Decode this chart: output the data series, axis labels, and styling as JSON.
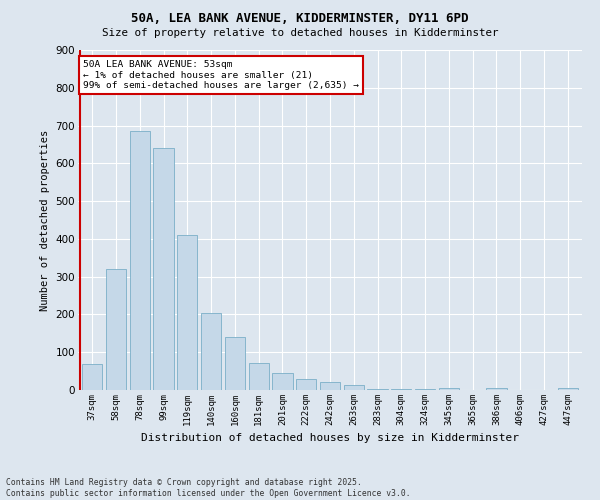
{
  "title1": "50A, LEA BANK AVENUE, KIDDERMINSTER, DY11 6PD",
  "title2": "Size of property relative to detached houses in Kidderminster",
  "xlabel": "Distribution of detached houses by size in Kidderminster",
  "ylabel": "Number of detached properties",
  "categories": [
    "37sqm",
    "58sqm",
    "78sqm",
    "99sqm",
    "119sqm",
    "140sqm",
    "160sqm",
    "181sqm",
    "201sqm",
    "222sqm",
    "242sqm",
    "263sqm",
    "283sqm",
    "304sqm",
    "324sqm",
    "345sqm",
    "365sqm",
    "386sqm",
    "406sqm",
    "427sqm",
    "447sqm"
  ],
  "values": [
    70,
    320,
    685,
    640,
    410,
    205,
    140,
    72,
    45,
    30,
    20,
    12,
    2,
    2,
    2,
    5,
    1,
    5,
    1,
    1,
    5
  ],
  "bar_color": "#c5d8e8",
  "bar_edge_color": "#7aafc8",
  "marker_color": "#cc0000",
  "bg_color": "#dde6ef",
  "grid_color": "#ffffff",
  "annotation_title": "50A LEA BANK AVENUE: 53sqm",
  "annotation_line1": "← 1% of detached houses are smaller (21)",
  "annotation_line2": "99% of semi-detached houses are larger (2,635) →",
  "annotation_box_color": "#ffffff",
  "annotation_border_color": "#cc0000",
  "footer1": "Contains HM Land Registry data © Crown copyright and database right 2025.",
  "footer2": "Contains public sector information licensed under the Open Government Licence v3.0.",
  "ylim": [
    0,
    900
  ],
  "yticks": [
    0,
    100,
    200,
    300,
    400,
    500,
    600,
    700,
    800,
    900
  ]
}
